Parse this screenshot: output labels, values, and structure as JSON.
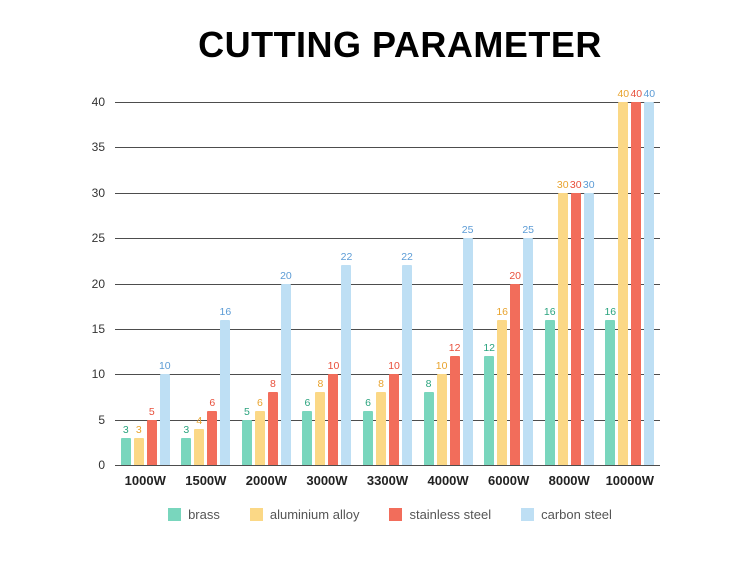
{
  "title": "CUTTING PARAMETER",
  "chart_data": {
    "type": "bar",
    "title": "CUTTING PARAMETER",
    "categories": [
      "1000W",
      "1500W",
      "2000W",
      "3000W",
      "3300W",
      "4000W",
      "6000W",
      "8000W",
      "10000W"
    ],
    "series": [
      {
        "name": "brass",
        "color": "#79d6bd",
        "label_color": "#2aa37e",
        "values": [
          3,
          3,
          5,
          6,
          6,
          8,
          12,
          16,
          16
        ]
      },
      {
        "name": "aluminium alloy",
        "color": "#fbd886",
        "label_color": "#e8a32d",
        "values": [
          3,
          4,
          6,
          8,
          8,
          10,
          16,
          30,
          40
        ]
      },
      {
        "name": "stainless steel",
        "color": "#f26d5b",
        "label_color": "#e84f3b",
        "values": [
          5,
          6,
          8,
          10,
          10,
          12,
          20,
          30,
          40
        ]
      },
      {
        "name": "carbon steel",
        "color": "#bedff4",
        "label_color": "#5b9bd5",
        "values": [
          10,
          16,
          20,
          22,
          22,
          25,
          25,
          30,
          40
        ]
      }
    ],
    "ylim": [
      0,
      40
    ],
    "ytick_step": 5,
    "grid": true,
    "legend_position": "bottom"
  }
}
